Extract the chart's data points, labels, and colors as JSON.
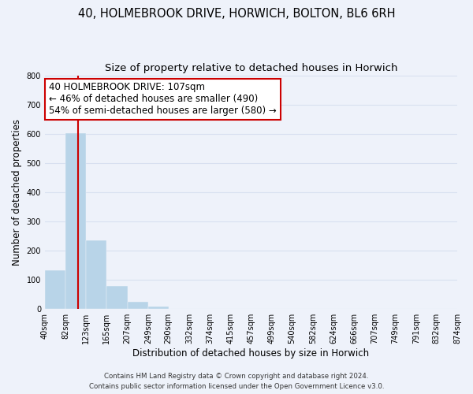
{
  "title_line1": "40, HOLMEBROOK DRIVE, HORWICH, BOLTON, BL6 6RH",
  "title_line2": "Size of property relative to detached houses in Horwich",
  "xlabel": "Distribution of detached houses by size in Horwich",
  "ylabel": "Number of detached properties",
  "bar_edges": [
    40,
    82,
    123,
    165,
    207,
    249,
    290,
    332,
    374,
    415,
    457,
    499,
    540,
    582,
    624,
    666,
    707,
    749,
    791,
    832,
    874
  ],
  "bar_heights": [
    133,
    603,
    236,
    78,
    24,
    10,
    0,
    0,
    0,
    0,
    0,
    0,
    0,
    0,
    0,
    0,
    0,
    0,
    0,
    0
  ],
  "bar_color": "#b8d4e8",
  "vline_x": 107,
  "vline_color": "#cc0000",
  "ylim": [
    0,
    800
  ],
  "yticks": [
    0,
    100,
    200,
    300,
    400,
    500,
    600,
    700,
    800
  ],
  "xlim": [
    40,
    874
  ],
  "annotation_line1": "40 HOLMEBROOK DRIVE: 107sqm",
  "annotation_line2": "← 46% of detached houses are smaller (490)",
  "annotation_line3": "54% of semi-detached houses are larger (580) →",
  "annotation_box_color": "white",
  "annotation_box_edge": "#cc0000",
  "footnote1": "Contains HM Land Registry data © Crown copyright and database right 2024.",
  "footnote2": "Contains public sector information licensed under the Open Government Licence v3.0.",
  "tick_labels": [
    "40sqm",
    "82sqm",
    "123sqm",
    "165sqm",
    "207sqm",
    "249sqm",
    "290sqm",
    "332sqm",
    "374sqm",
    "415sqm",
    "457sqm",
    "499sqm",
    "540sqm",
    "582sqm",
    "624sqm",
    "666sqm",
    "707sqm",
    "749sqm",
    "791sqm",
    "832sqm",
    "874sqm"
  ],
  "background_color": "#eef2fa",
  "grid_color": "#d8e0f0",
  "title_fontsize": 10.5,
  "subtitle_fontsize": 9.5,
  "axis_label_fontsize": 8.5,
  "tick_fontsize": 7,
  "annot_fontsize": 8.5
}
